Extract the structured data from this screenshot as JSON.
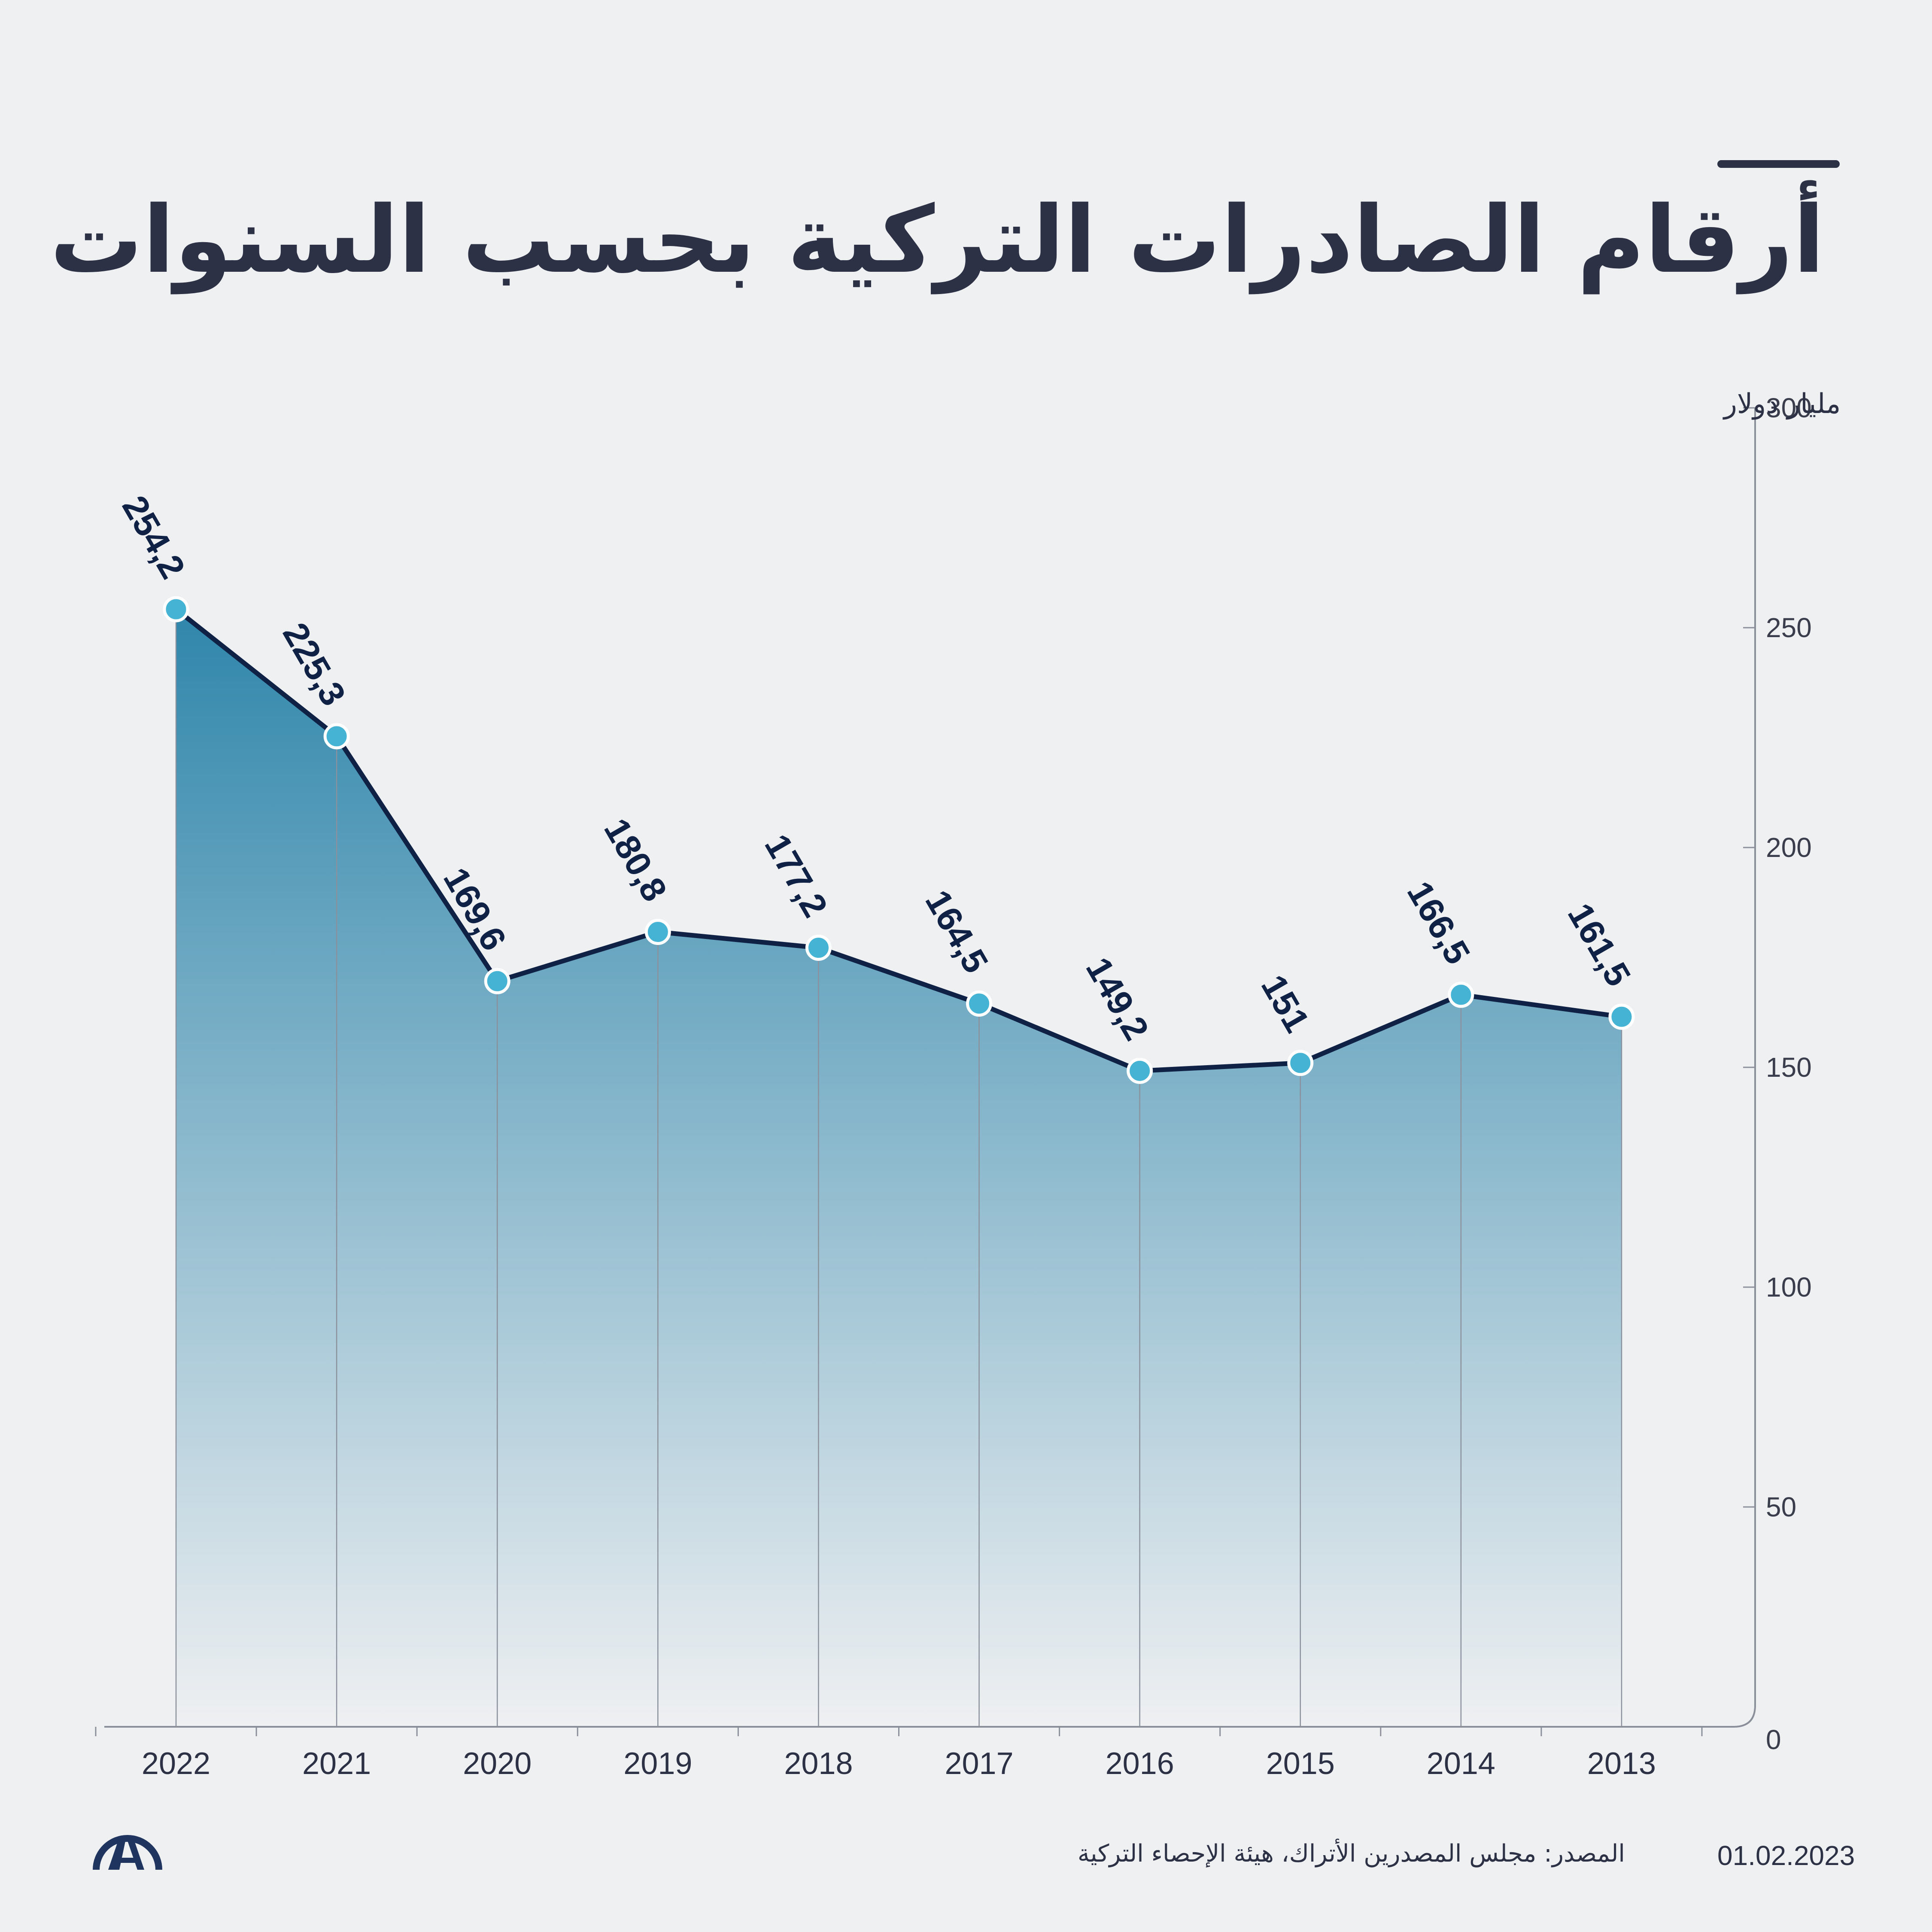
{
  "header": {
    "title": "أرقام الصادرات التركية بحسب السنوات"
  },
  "footer": {
    "source": "المصدر: مجلس المصدرين الأتراك، هيئة الإحصاء التركية",
    "date": "01.02.2023",
    "logo_icon": "aa-logo-icon"
  },
  "colors": {
    "line": "#0f2246",
    "marker_fill": "#45b4d4",
    "area_top": "#2f86ab",
    "area_bottom": "#eff0f2",
    "text": "#2d3146"
  },
  "chart_data": {
    "type": "area",
    "unit_label": "مليار دولار",
    "x": [
      "2022",
      "2021",
      "2020",
      "2019",
      "2018",
      "2017",
      "2016",
      "2015",
      "2014",
      "2013"
    ],
    "series": [
      {
        "values": [
          254.2,
          225.3,
          169.6,
          180.8,
          177.2,
          164.5,
          149.2,
          151,
          166.5,
          161.5
        ],
        "labels": [
          "254,2",
          "225,3",
          "169,6",
          "180,8",
          "177,2",
          "164,5",
          "149,2",
          "151",
          "166,5",
          "161,5"
        ]
      }
    ],
    "ylim": [
      0,
      300
    ],
    "yticks": [
      0,
      50,
      100,
      150,
      200,
      250,
      300
    ],
    "y_axis_side": "right",
    "grid": false,
    "legend": "none"
  }
}
